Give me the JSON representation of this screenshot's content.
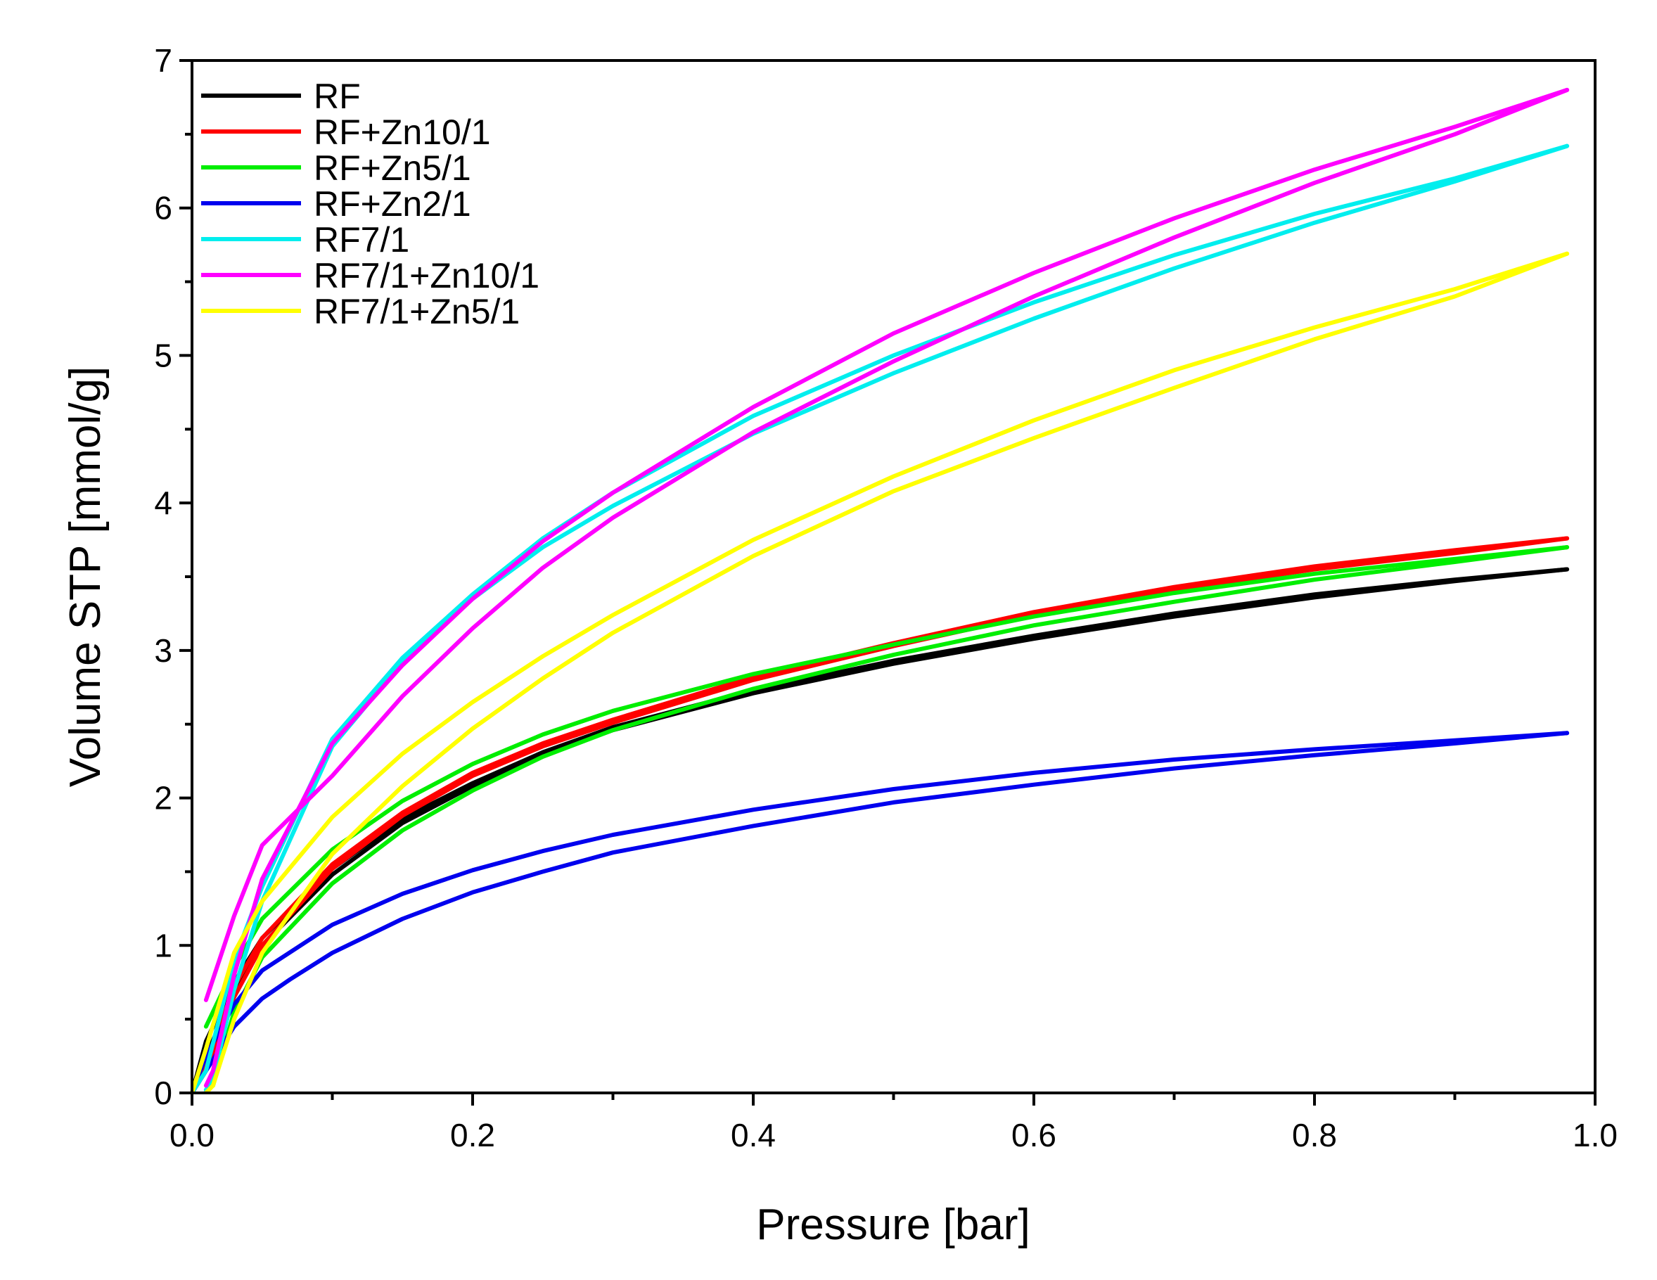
{
  "chart_data": {
    "type": "line",
    "title": "",
    "xlabel": "Pressure [bar]",
    "ylabel": "Volume STP [mmol/g]",
    "xlim": [
      0.0,
      1.0
    ],
    "ylim": [
      0,
      7
    ],
    "x_ticks": [
      "0.0",
      "0.2",
      "0.4",
      "0.6",
      "0.8",
      "1.0"
    ],
    "y_ticks": [
      "0",
      "1",
      "2",
      "3",
      "4",
      "5",
      "6",
      "7"
    ],
    "legend_position": "top-left",
    "grid": false,
    "series": [
      {
        "name": "RF",
        "color": "#000000",
        "adsorption": [
          [
            0.0,
            0.0
          ],
          [
            0.01,
            0.35
          ],
          [
            0.03,
            0.75
          ],
          [
            0.05,
            1.05
          ],
          [
            0.1,
            1.52
          ],
          [
            0.15,
            1.86
          ],
          [
            0.2,
            2.1
          ],
          [
            0.25,
            2.31
          ],
          [
            0.3,
            2.48
          ],
          [
            0.4,
            2.73
          ],
          [
            0.5,
            2.93
          ],
          [
            0.6,
            3.1
          ],
          [
            0.7,
            3.25
          ],
          [
            0.8,
            3.38
          ],
          [
            0.9,
            3.48
          ],
          [
            0.98,
            3.55
          ]
        ],
        "desorption": [
          [
            0.98,
            3.55
          ],
          [
            0.9,
            3.47
          ],
          [
            0.8,
            3.36
          ],
          [
            0.7,
            3.23
          ],
          [
            0.6,
            3.08
          ],
          [
            0.5,
            2.91
          ],
          [
            0.4,
            2.71
          ],
          [
            0.3,
            2.46
          ],
          [
            0.25,
            2.29
          ],
          [
            0.2,
            2.08
          ],
          [
            0.15,
            1.83
          ],
          [
            0.1,
            1.48
          ],
          [
            0.05,
            1.0
          ],
          [
            0.03,
            0.68
          ],
          [
            0.01,
            0.25
          ],
          [
            0.0,
            0.0
          ]
        ]
      },
      {
        "name": "RF+Zn10/1",
        "color": "#ff0000",
        "adsorption": [
          [
            0.0,
            0.0
          ],
          [
            0.01,
            0.2
          ],
          [
            0.03,
            0.72
          ],
          [
            0.05,
            1.05
          ],
          [
            0.1,
            1.55
          ],
          [
            0.15,
            1.9
          ],
          [
            0.2,
            2.17
          ],
          [
            0.25,
            2.37
          ],
          [
            0.3,
            2.53
          ],
          [
            0.4,
            2.82
          ],
          [
            0.5,
            3.05
          ],
          [
            0.6,
            3.26
          ],
          [
            0.7,
            3.43
          ],
          [
            0.8,
            3.57
          ],
          [
            0.9,
            3.68
          ],
          [
            0.98,
            3.76
          ]
        ],
        "desorption": [
          [
            0.98,
            3.76
          ],
          [
            0.9,
            3.66
          ],
          [
            0.8,
            3.55
          ],
          [
            0.7,
            3.41
          ],
          [
            0.6,
            3.24
          ],
          [
            0.5,
            3.03
          ],
          [
            0.4,
            2.8
          ],
          [
            0.3,
            2.51
          ],
          [
            0.25,
            2.35
          ],
          [
            0.2,
            2.15
          ],
          [
            0.15,
            1.88
          ],
          [
            0.1,
            1.52
          ],
          [
            0.05,
            1.0
          ],
          [
            0.03,
            0.65
          ],
          [
            0.01,
            0.15
          ],
          [
            0.0,
            0.0
          ]
        ]
      },
      {
        "name": "RF+Zn5/1",
        "color": "#00ee00",
        "adsorption": [
          [
            0.01,
            0.45
          ],
          [
            0.03,
            0.85
          ],
          [
            0.05,
            1.18
          ],
          [
            0.1,
            1.65
          ],
          [
            0.15,
            1.98
          ],
          [
            0.2,
            2.23
          ],
          [
            0.25,
            2.43
          ],
          [
            0.3,
            2.59
          ],
          [
            0.4,
            2.84
          ],
          [
            0.5,
            3.04
          ],
          [
            0.6,
            3.23
          ],
          [
            0.7,
            3.39
          ],
          [
            0.8,
            3.52
          ],
          [
            0.9,
            3.62
          ],
          [
            0.98,
            3.7
          ]
        ],
        "desorption": [
          [
            0.98,
            3.7
          ],
          [
            0.9,
            3.6
          ],
          [
            0.8,
            3.48
          ],
          [
            0.7,
            3.33
          ],
          [
            0.6,
            3.17
          ],
          [
            0.5,
            2.97
          ],
          [
            0.4,
            2.74
          ],
          [
            0.3,
            2.46
          ],
          [
            0.25,
            2.28
          ],
          [
            0.2,
            2.05
          ],
          [
            0.15,
            1.78
          ],
          [
            0.1,
            1.42
          ],
          [
            0.05,
            0.92
          ],
          [
            0.03,
            0.55
          ],
          [
            0.015,
            0.05
          ],
          [
            0.01,
            0.02
          ]
        ]
      },
      {
        "name": "RF+Zn2/1",
        "color": "#0000ee",
        "adsorption": [
          [
            0.0,
            0.0
          ],
          [
            0.01,
            0.25
          ],
          [
            0.03,
            0.6
          ],
          [
            0.05,
            0.83
          ],
          [
            0.1,
            1.14
          ],
          [
            0.15,
            1.35
          ],
          [
            0.2,
            1.51
          ],
          [
            0.25,
            1.64
          ],
          [
            0.3,
            1.75
          ],
          [
            0.4,
            1.92
          ],
          [
            0.5,
            2.06
          ],
          [
            0.6,
            2.17
          ],
          [
            0.7,
            2.26
          ],
          [
            0.8,
            2.33
          ],
          [
            0.9,
            2.39
          ],
          [
            0.98,
            2.44
          ]
        ],
        "desorption": [
          [
            0.98,
            2.44
          ],
          [
            0.9,
            2.37
          ],
          [
            0.8,
            2.29
          ],
          [
            0.7,
            2.2
          ],
          [
            0.6,
            2.09
          ],
          [
            0.5,
            1.97
          ],
          [
            0.4,
            1.81
          ],
          [
            0.3,
            1.63
          ],
          [
            0.25,
            1.5
          ],
          [
            0.2,
            1.36
          ],
          [
            0.15,
            1.18
          ],
          [
            0.1,
            0.95
          ],
          [
            0.07,
            0.77
          ],
          [
            0.05,
            0.64
          ],
          [
            0.03,
            0.45
          ],
          [
            0.01,
            0.15
          ],
          [
            0.0,
            0.0
          ]
        ]
      },
      {
        "name": "RF7/1",
        "color": "#00eeee",
        "adsorption": [
          [
            0.0,
            0.0
          ],
          [
            0.01,
            0.15
          ],
          [
            0.03,
            0.9
          ],
          [
            0.05,
            1.4
          ],
          [
            0.1,
            2.4
          ],
          [
            0.15,
            2.95
          ],
          [
            0.2,
            3.38
          ],
          [
            0.25,
            3.76
          ],
          [
            0.3,
            4.07
          ],
          [
            0.4,
            4.59
          ],
          [
            0.5,
            5.0
          ],
          [
            0.6,
            5.36
          ],
          [
            0.7,
            5.68
          ],
          [
            0.8,
            5.96
          ],
          [
            0.9,
            6.2
          ],
          [
            0.98,
            6.42
          ]
        ],
        "desorption": [
          [
            0.98,
            6.42
          ],
          [
            0.9,
            6.18
          ],
          [
            0.8,
            5.9
          ],
          [
            0.7,
            5.59
          ],
          [
            0.6,
            5.25
          ],
          [
            0.5,
            4.88
          ],
          [
            0.4,
            4.47
          ],
          [
            0.3,
            3.98
          ],
          [
            0.25,
            3.7
          ],
          [
            0.2,
            3.35
          ],
          [
            0.15,
            2.92
          ],
          [
            0.1,
            2.35
          ],
          [
            0.05,
            1.3
          ],
          [
            0.03,
            0.7
          ],
          [
            0.015,
            0.1
          ],
          [
            0.01,
            0.02
          ]
        ]
      },
      {
        "name": "RF7/1+Zn10/1",
        "color": "#ff00ff",
        "adsorption": [
          [
            0.01,
            0.63
          ],
          [
            0.03,
            1.2
          ],
          [
            0.05,
            1.68
          ],
          [
            0.1,
            2.15
          ],
          [
            0.15,
            2.69
          ],
          [
            0.2,
            3.15
          ],
          [
            0.25,
            3.56
          ],
          [
            0.3,
            3.9
          ],
          [
            0.4,
            4.48
          ],
          [
            0.5,
            4.96
          ],
          [
            0.6,
            5.4
          ],
          [
            0.7,
            5.8
          ],
          [
            0.8,
            6.17
          ],
          [
            0.9,
            6.5
          ],
          [
            0.98,
            6.8
          ]
        ],
        "desorption": [
          [
            0.98,
            6.8
          ],
          [
            0.9,
            6.55
          ],
          [
            0.8,
            6.26
          ],
          [
            0.7,
            5.93
          ],
          [
            0.6,
            5.56
          ],
          [
            0.5,
            5.15
          ],
          [
            0.4,
            4.65
          ],
          [
            0.3,
            4.07
          ],
          [
            0.25,
            3.74
          ],
          [
            0.2,
            3.35
          ],
          [
            0.15,
            2.9
          ],
          [
            0.1,
            2.37
          ],
          [
            0.05,
            1.45
          ],
          [
            0.03,
            0.8
          ],
          [
            0.015,
            0.15
          ],
          [
            0.01,
            0.05
          ]
        ]
      },
      {
        "name": "RF7/1+Zn5/1",
        "color": "#ffff00",
        "adsorption": [
          [
            0.0,
            0.0
          ],
          [
            0.01,
            0.3
          ],
          [
            0.03,
            0.95
          ],
          [
            0.05,
            1.3
          ],
          [
            0.1,
            1.87
          ],
          [
            0.15,
            2.3
          ],
          [
            0.2,
            2.65
          ],
          [
            0.25,
            2.96
          ],
          [
            0.3,
            3.24
          ],
          [
            0.4,
            3.75
          ],
          [
            0.5,
            4.18
          ],
          [
            0.6,
            4.56
          ],
          [
            0.7,
            4.9
          ],
          [
            0.8,
            5.19
          ],
          [
            0.9,
            5.45
          ],
          [
            0.98,
            5.69
          ]
        ],
        "desorption": [
          [
            0.98,
            5.69
          ],
          [
            0.9,
            5.4
          ],
          [
            0.8,
            5.11
          ],
          [
            0.7,
            4.78
          ],
          [
            0.6,
            4.44
          ],
          [
            0.5,
            4.08
          ],
          [
            0.4,
            3.64
          ],
          [
            0.3,
            3.12
          ],
          [
            0.25,
            2.81
          ],
          [
            0.2,
            2.47
          ],
          [
            0.15,
            2.08
          ],
          [
            0.1,
            1.62
          ],
          [
            0.05,
            0.95
          ],
          [
            0.03,
            0.5
          ],
          [
            0.015,
            0.05
          ],
          [
            0.01,
            0.0
          ]
        ]
      }
    ]
  }
}
